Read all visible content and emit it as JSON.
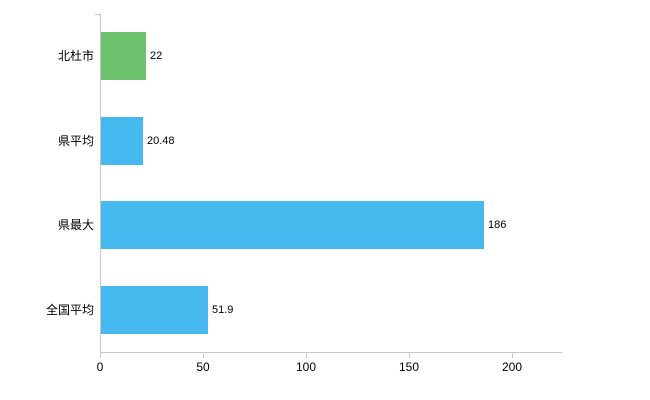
{
  "chart_data": {
    "type": "bar",
    "orientation": "horizontal",
    "title": "",
    "xlabel": "",
    "ylabel": "",
    "categories": [
      "北杜市",
      "県平均",
      "県最大",
      "全国平均"
    ],
    "values": [
      22,
      20.48,
      186,
      51.9
    ],
    "value_labels": [
      "22",
      "20.48",
      "186",
      "51.9"
    ],
    "bar_colors": [
      "#6cc26c",
      "#45b9ee",
      "#45b9ee",
      "#45b9ee"
    ],
    "xlim": [
      0,
      200
    ],
    "xticks": [
      0,
      50,
      100,
      150,
      200
    ],
    "xtick_labels": [
      "0",
      "50",
      "100",
      "150",
      "200"
    ],
    "grid": false,
    "legend": false,
    "axis_color": "#c8c8c8",
    "background_color": "#ffffff"
  }
}
